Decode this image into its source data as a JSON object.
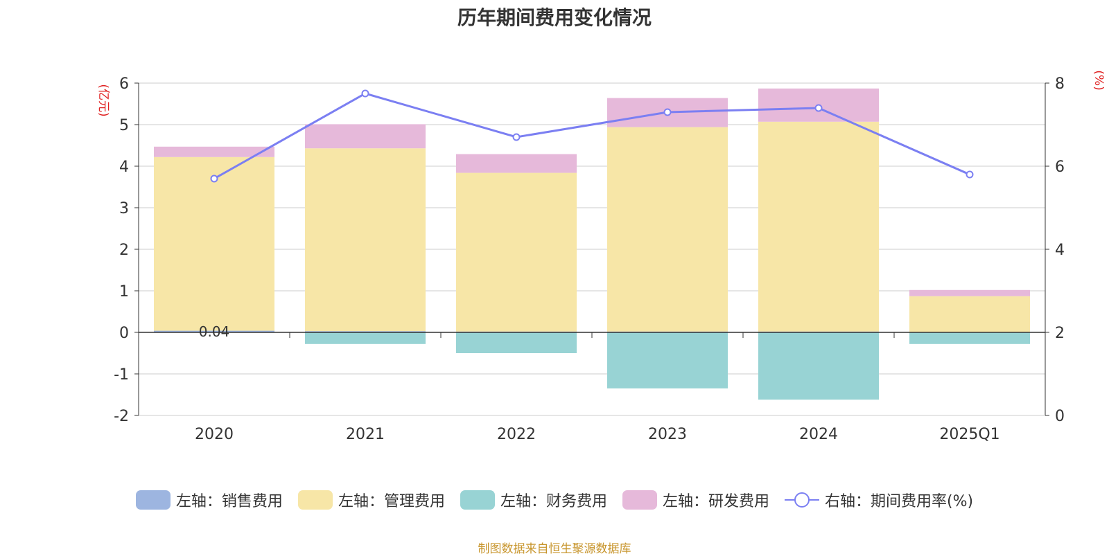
{
  "chart_data": {
    "type": "bar",
    "stacked": true,
    "title": "历年期间费用变化情况",
    "categories": [
      "2020",
      "2021",
      "2022",
      "2023",
      "2024",
      "2025Q1"
    ],
    "left_axis": {
      "label": "(亿元)",
      "min": -2,
      "max": 6,
      "ticks": [
        6,
        5,
        4,
        3,
        2,
        1,
        0,
        -1,
        -2
      ]
    },
    "right_axis": {
      "label": "(%)",
      "min": 0,
      "max": 8,
      "ticks": [
        8,
        6,
        4,
        2,
        0
      ]
    },
    "series": [
      {
        "name": "左轴：销售费用",
        "axis": "left",
        "kind": "bar",
        "color": "#9db5e0",
        "values": [
          0.04,
          0.03,
          0.02,
          0.02,
          0.02,
          0.01
        ]
      },
      {
        "name": "左轴：管理费用",
        "axis": "left",
        "kind": "bar",
        "color": "#f7e6a7",
        "values": [
          4.18,
          4.4,
          3.82,
          4.92,
          5.05,
          0.86
        ]
      },
      {
        "name": "左轴：财务费用",
        "axis": "left",
        "kind": "bar",
        "color": "#98d3d4",
        "values": [
          0,
          -0.28,
          -0.5,
          -1.35,
          -1.62,
          -0.28
        ]
      },
      {
        "name": "左轴：研发费用",
        "axis": "left",
        "kind": "bar",
        "color": "#e6b9da",
        "values": [
          0.25,
          0.58,
          0.45,
          0.7,
          0.8,
          0.15
        ]
      },
      {
        "name": "右轴：期间费用率(%)",
        "axis": "right",
        "kind": "line",
        "color": "#7b7ff2",
        "values": [
          5.7,
          7.75,
          6.7,
          7.3,
          7.4,
          5.8
        ]
      }
    ],
    "data_labels": {
      "2020": "0.04"
    }
  },
  "legend": [
    {
      "label": "左轴：销售费用",
      "color": "#9db5e0",
      "kind": "box"
    },
    {
      "label": "左轴：管理费用",
      "color": "#f7e6a7",
      "kind": "box"
    },
    {
      "label": "左轴：财务费用",
      "color": "#98d3d4",
      "kind": "box"
    },
    {
      "label": "左轴：研发费用",
      "color": "#e6b9da",
      "kind": "box"
    },
    {
      "label": "右轴：期间费用率(%)",
      "color": "#7b7ff2",
      "kind": "line"
    }
  ],
  "source_note": "制图数据来自恒生聚源数据库"
}
